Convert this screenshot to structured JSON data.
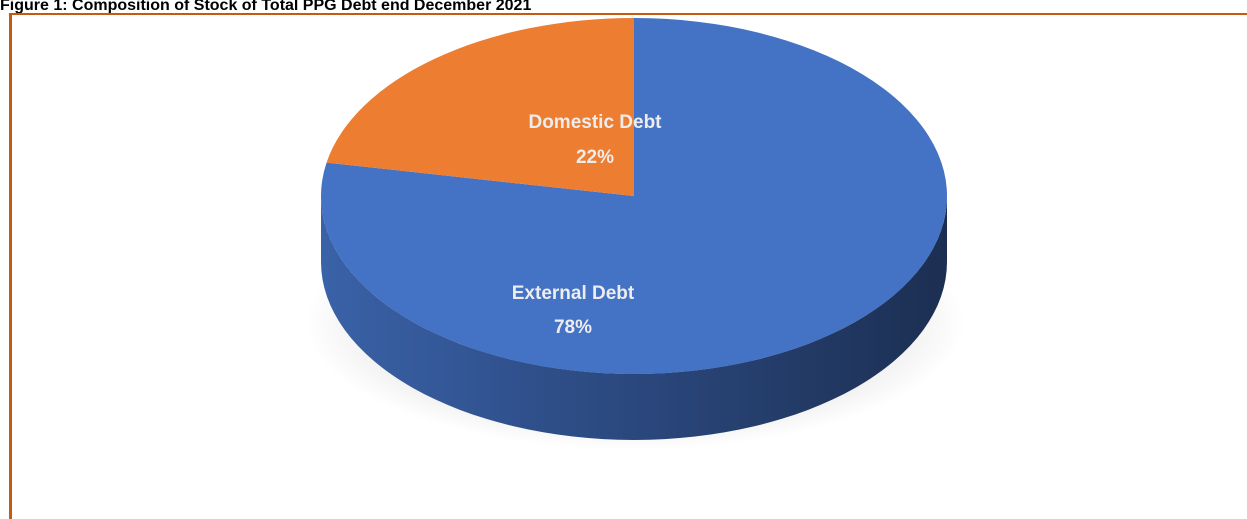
{
  "figure": {
    "title": "Figure 1: Composition of Stock of Total PPG Debt end December 2021"
  },
  "chart_data": {
    "type": "pie",
    "title": "",
    "slices": [
      {
        "name": "External Debt",
        "value": 78,
        "label": "78%",
        "color": "#4472C4"
      },
      {
        "name": "Domestic Debt",
        "value": 22,
        "label": "22%",
        "color": "#ED7D31"
      }
    ],
    "style": "3d",
    "legend": "none"
  }
}
